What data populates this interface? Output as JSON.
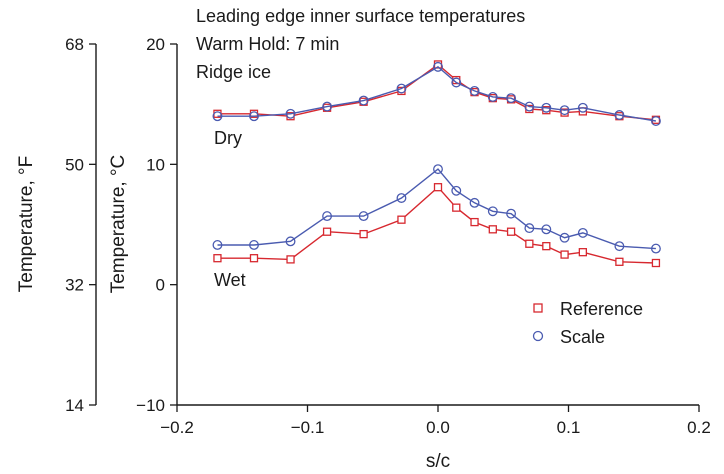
{
  "chart_data": {
    "type": "line",
    "annotations": {
      "title_lines": [
        "Leading edge inner surface temperatures",
        "Warm Hold: 7 min",
        "Ridge ice"
      ],
      "group_labels": [
        "Dry",
        "Wet"
      ]
    },
    "xlabel": "s/c",
    "ylabel": "Temperature, °C",
    "ylabel_secondary": "Temperature, °F",
    "xlim": [
      -0.2,
      0.2
    ],
    "ylim": [
      -10,
      20
    ],
    "ylim_secondary": [
      14,
      68
    ],
    "x_ticks": [
      -0.2,
      -0.1,
      0.0,
      0.1,
      0.2
    ],
    "x_tick_labels": [
      "−0.2",
      "−0.1",
      "0.0",
      "0.1",
      "0.2"
    ],
    "y_ticks": [
      -10,
      0,
      10,
      20
    ],
    "y_tick_labels": [
      "−10",
      "0",
      "10",
      "20"
    ],
    "y2_ticks": [
      14,
      32,
      50,
      68
    ],
    "y2_tick_labels": [
      "14",
      "32",
      "50",
      "68"
    ],
    "grid": false,
    "legend_position": "lower-right",
    "legend": [
      {
        "name": "Reference",
        "marker": "square",
        "color": "#d7282f"
      },
      {
        "name": "Scale",
        "marker": "circle",
        "color": "#4a5bb0"
      }
    ],
    "series": [
      {
        "name": "Reference",
        "group": "Dry",
        "color": "#d7282f",
        "marker": "square",
        "x": [
          -0.169,
          -0.141,
          -0.113,
          -0.085,
          -0.057,
          -0.028,
          0.0,
          0.014,
          0.028,
          0.042,
          0.056,
          0.07,
          0.083,
          0.097,
          0.111,
          0.139,
          0.167
        ],
        "y": [
          14.2,
          14.2,
          14.0,
          14.7,
          15.2,
          16.1,
          18.3,
          17.0,
          16.0,
          15.5,
          15.4,
          14.6,
          14.5,
          14.3,
          14.4,
          14.0,
          13.7
        ]
      },
      {
        "name": "Scale",
        "group": "Dry",
        "color": "#4a5bb0",
        "marker": "circle",
        "x": [
          -0.169,
          -0.141,
          -0.113,
          -0.085,
          -0.057,
          -0.028,
          0.0,
          0.014,
          0.028,
          0.042,
          0.056,
          0.07,
          0.083,
          0.097,
          0.111,
          0.139,
          0.167
        ],
        "y": [
          14.0,
          14.0,
          14.2,
          14.8,
          15.3,
          16.3,
          18.1,
          16.8,
          16.1,
          15.6,
          15.5,
          14.8,
          14.7,
          14.5,
          14.7,
          14.1,
          13.6
        ]
      },
      {
        "name": "Reference",
        "group": "Wet",
        "color": "#d7282f",
        "marker": "square",
        "x": [
          -0.169,
          -0.141,
          -0.113,
          -0.085,
          -0.057,
          -0.028,
          0.0,
          0.014,
          0.028,
          0.042,
          0.056,
          0.07,
          0.083,
          0.097,
          0.111,
          0.139,
          0.167
        ],
        "y": [
          2.2,
          2.2,
          2.1,
          4.4,
          4.2,
          5.4,
          8.1,
          6.4,
          5.2,
          4.6,
          4.4,
          3.4,
          3.2,
          2.5,
          2.7,
          1.9,
          1.8
        ]
      },
      {
        "name": "Scale",
        "group": "Wet",
        "color": "#4a5bb0",
        "marker": "circle",
        "x": [
          -0.169,
          -0.141,
          -0.113,
          -0.085,
          -0.057,
          -0.028,
          0.0,
          0.014,
          0.028,
          0.042,
          0.056,
          0.07,
          0.083,
          0.097,
          0.111,
          0.139,
          0.167
        ],
        "y": [
          3.3,
          3.3,
          3.6,
          5.7,
          5.7,
          7.2,
          9.6,
          7.8,
          6.8,
          6.1,
          5.9,
          4.7,
          4.6,
          3.9,
          4.3,
          3.2,
          3.0
        ]
      }
    ]
  }
}
